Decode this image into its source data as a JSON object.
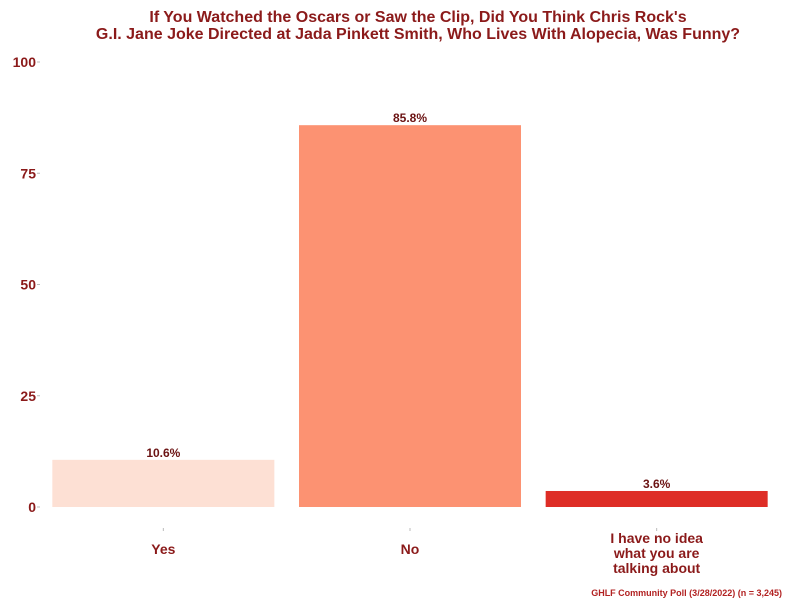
{
  "chart_data": {
    "type": "bar",
    "title": [
      "If You Watched the Oscars or Saw the Clip, Did You Think Chris Rock's",
      "G.I. Jane Joke Directed at Jada Pinkett Smith, Who Lives With Alopecia, Was Funny?"
    ],
    "categories": [
      [
        "Yes"
      ],
      [
        "No"
      ],
      [
        "I have no idea",
        "what you are",
        "talking about"
      ]
    ],
    "values": [
      10.6,
      85.8,
      3.6
    ],
    "data_labels": [
      "10.6%",
      "85.8%",
      "3.6%"
    ],
    "colors": [
      "#fde0d4",
      "#fc9272",
      "#de2d26"
    ],
    "ylim": [
      0,
      100
    ],
    "yticks": [
      0,
      25,
      50,
      75,
      100
    ],
    "xlabel": "",
    "ylabel": "",
    "grid": false,
    "caption": "GHLF Community Poll (3/28/2022) (n = 3,245)"
  }
}
